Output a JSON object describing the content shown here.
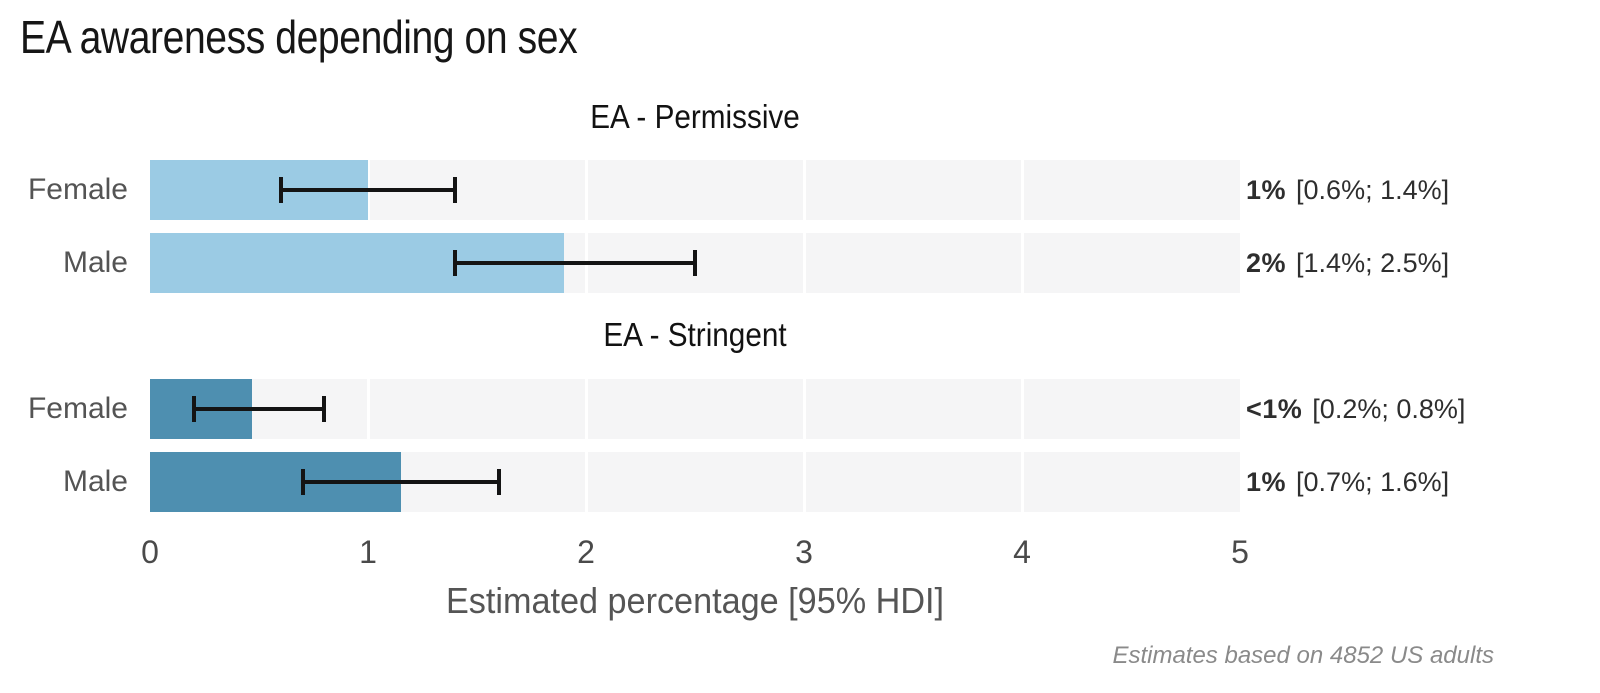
{
  "title": "EA awareness depending on sex",
  "footnote": "Estimates based on 4852 US adults",
  "axis": {
    "label": "Estimated percentage [95% HDI]",
    "ticks": [
      "0",
      "1",
      "2",
      "3",
      "4",
      "5"
    ],
    "min": 0,
    "max": 5
  },
  "colors": {
    "permissive_bar": "#9bcbe4",
    "stringent_bar": "#4e8fb0",
    "track_bg": "#f5f5f6",
    "gridline": "#ffffff",
    "error_bar": "#141414"
  },
  "chart_data": {
    "type": "bar",
    "orientation": "horizontal",
    "title": "EA awareness depending on sex",
    "xlabel": "Estimated percentage [95% HDI]",
    "xlim": [
      0,
      5
    ],
    "grid": "vertical white lines at integer ticks over light-gray full-width tracks",
    "legend": "none",
    "panels": [
      {
        "title": "EA - Permissive",
        "bar_color": "#9bcbe4",
        "rows": [
          {
            "label": "Female",
            "mean": 1.0,
            "hdi_low": 0.6,
            "hdi_high": 1.4,
            "annotation_value": "1%",
            "annotation_interval": "[0.6%; 1.4%]"
          },
          {
            "label": "Male",
            "mean": 1.9,
            "hdi_low": 1.4,
            "hdi_high": 2.5,
            "annotation_value": "2%",
            "annotation_interval": "[1.4%; 2.5%]"
          }
        ]
      },
      {
        "title": "EA - Stringent",
        "bar_color": "#4e8fb0",
        "rows": [
          {
            "label": "Female",
            "mean": 0.47,
            "hdi_low": 0.2,
            "hdi_high": 0.8,
            "annotation_value": "<1%",
            "annotation_interval": "[0.2%; 0.8%]"
          },
          {
            "label": "Male",
            "mean": 1.15,
            "hdi_low": 0.7,
            "hdi_high": 1.6,
            "annotation_value": "1%",
            "annotation_interval": "[0.7%; 1.6%]"
          }
        ]
      }
    ]
  }
}
